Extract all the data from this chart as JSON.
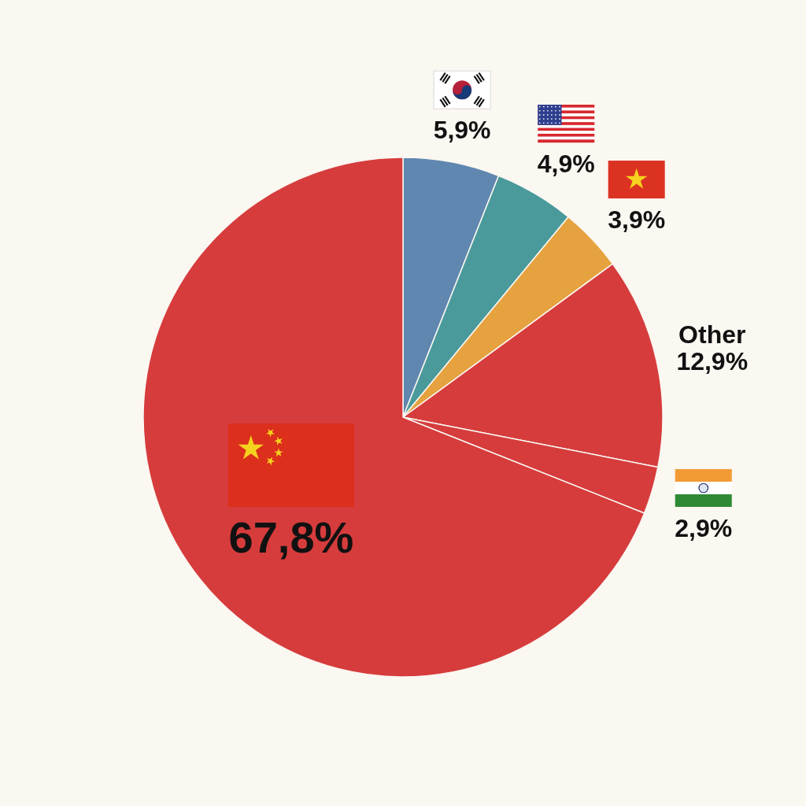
{
  "chart_data": {
    "type": "pie",
    "categories": [
      null,
      null,
      null,
      "Other",
      null,
      null
    ],
    "values": [
      5.9,
      4.9,
      3.9,
      12.9,
      2.9,
      67.8
    ],
    "colors": [
      "#5f87b0",
      "#4a9a9c",
      "#e6a23f",
      "#d63c3c",
      "#d63c3c",
      "#d63c3c"
    ],
    "value_labels": [
      "5,9%",
      "4,9%",
      "3,9%",
      "12,9%",
      "2,9%",
      "67,8%"
    ]
  }
}
